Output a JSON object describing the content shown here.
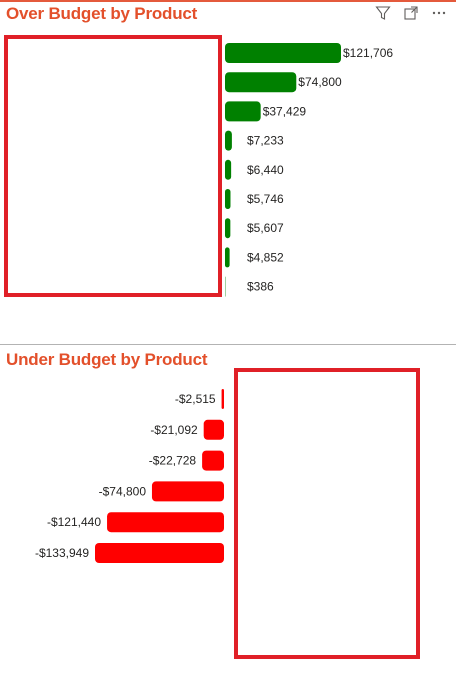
{
  "panels": {
    "over": {
      "title": "Over Budget by Product",
      "bar_color": "#008000"
    },
    "under": {
      "title": "Under Budget by Product",
      "bar_color": "#ff0000"
    }
  },
  "toolbar": {
    "icons": [
      "filter-icon",
      "focus-mode-icon",
      "more-options-icon"
    ]
  },
  "colors": {
    "title": "#e3502b",
    "frame": "#e02027",
    "accent": "#e45a3c"
  },
  "chart_data": [
    {
      "type": "bar",
      "orientation": "horizontal",
      "title": "Over Budget by Product",
      "categories": [],
      "values": [
        121706,
        74800,
        37429,
        7233,
        6440,
        5746,
        5607,
        4852,
        386
      ],
      "labels": [
        "$121,706",
        "$74,800",
        "$37,429",
        "$7,233",
        "$6,440",
        "$5,746",
        "$5,607",
        "$4,852",
        "$386"
      ]
    },
    {
      "type": "bar",
      "orientation": "horizontal",
      "title": "Under Budget by Product",
      "categories": [],
      "values": [
        -2515,
        -21092,
        -22728,
        -74800,
        -121440,
        -133949
      ],
      "labels": [
        "-$2,515",
        "-$21,092",
        "-$22,728",
        "-$74,800",
        "-$121,440",
        "-$133,949"
      ]
    }
  ]
}
